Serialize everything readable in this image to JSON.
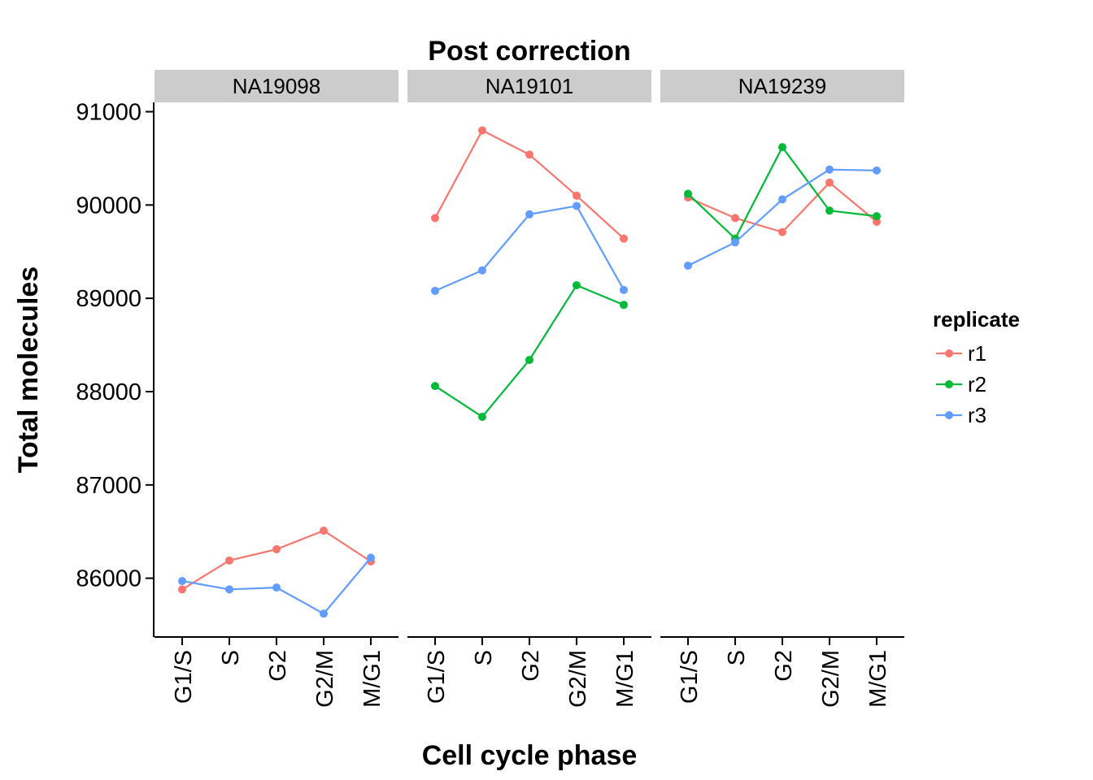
{
  "chart_data": {
    "type": "line",
    "title": "Post correction",
    "xlabel": "Cell cycle phase",
    "ylabel": "Total molecules",
    "categories": [
      "G1/S",
      "S",
      "G2",
      "G2/M",
      "M/G1"
    ],
    "y_ticks": [
      86000,
      87000,
      88000,
      89000,
      90000,
      91000
    ],
    "ylim": [
      85370,
      91100
    ],
    "grid": false,
    "legend": {
      "title": "replicate",
      "placement": "right",
      "entries": [
        "r1",
        "r2",
        "r3"
      ]
    },
    "colors": {
      "r1": "#f8766d",
      "r2": "#00ba38",
      "r3": "#619cff"
    },
    "panels": [
      {
        "label": "NA19098",
        "series": [
          {
            "name": "r1",
            "values": [
              85880,
              86190,
              86310,
              86510,
              86180
            ]
          },
          {
            "name": "r3",
            "values": [
              85970,
              85880,
              85900,
              85620,
              86220
            ]
          }
        ]
      },
      {
        "label": "NA19101",
        "series": [
          {
            "name": "r1",
            "values": [
              89860,
              90800,
              90540,
              90100,
              89640
            ]
          },
          {
            "name": "r2",
            "values": [
              88060,
              87730,
              88340,
              89140,
              88930
            ]
          },
          {
            "name": "r3",
            "values": [
              89080,
              89300,
              89900,
              89990,
              89090
            ]
          }
        ]
      },
      {
        "label": "NA19239",
        "series": [
          {
            "name": "r1",
            "values": [
              90080,
              89860,
              89710,
              90240,
              89820
            ]
          },
          {
            "name": "r2",
            "values": [
              90120,
              89640,
              90620,
              89940,
              89880
            ]
          },
          {
            "name": "r3",
            "values": [
              89350,
              89600,
              90060,
              90380,
              90370
            ]
          }
        ]
      }
    ]
  }
}
